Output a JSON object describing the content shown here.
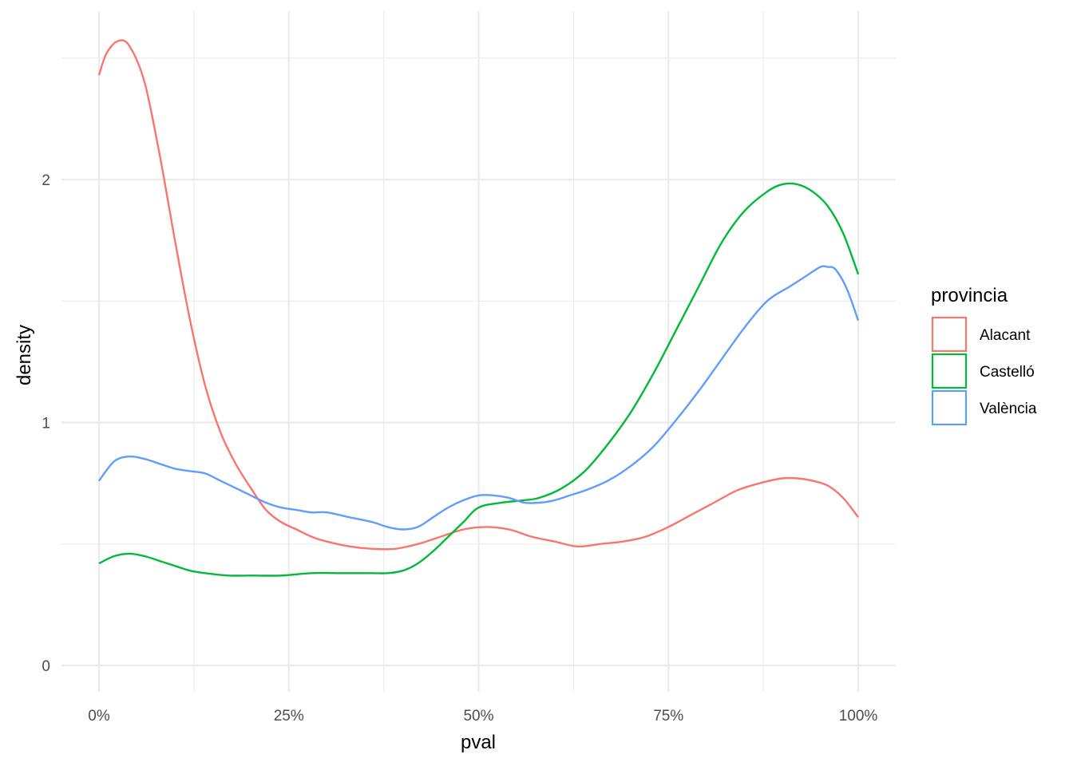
{
  "chart_data": {
    "type": "line",
    "title": "",
    "xlabel": "pval",
    "ylabel": "density",
    "xlim": [
      0,
      100
    ],
    "ylim": [
      0,
      2.5
    ],
    "x_ticks": [
      0,
      25,
      50,
      75,
      100
    ],
    "x_tick_labels": [
      "0%",
      "25%",
      "50%",
      "75%",
      "100%"
    ],
    "y_ticks": [
      0,
      1,
      2
    ],
    "y_tick_labels": [
      "0",
      "1",
      "2"
    ],
    "grid": true,
    "legend": {
      "title": "provincia",
      "position": "right"
    },
    "series": [
      {
        "name": "Alacant",
        "color": "#F8766D",
        "points": [
          [
            0,
            2.43
          ],
          [
            1,
            2.52
          ],
          [
            2.5,
            2.57
          ],
          [
            4,
            2.55
          ],
          [
            6,
            2.4
          ],
          [
            8,
            2.1
          ],
          [
            10,
            1.75
          ],
          [
            12,
            1.42
          ],
          [
            14,
            1.15
          ],
          [
            16,
            0.96
          ],
          [
            18,
            0.83
          ],
          [
            20,
            0.73
          ],
          [
            22,
            0.64
          ],
          [
            24,
            0.59
          ],
          [
            26,
            0.56
          ],
          [
            28,
            0.53
          ],
          [
            30,
            0.51
          ],
          [
            33,
            0.49
          ],
          [
            36,
            0.48
          ],
          [
            39,
            0.48
          ],
          [
            42,
            0.5
          ],
          [
            45,
            0.53
          ],
          [
            48,
            0.56
          ],
          [
            51,
            0.57
          ],
          [
            54,
            0.56
          ],
          [
            57,
            0.53
          ],
          [
            60,
            0.51
          ],
          [
            63,
            0.49
          ],
          [
            66,
            0.5
          ],
          [
            69,
            0.51
          ],
          [
            72,
            0.53
          ],
          [
            75,
            0.57
          ],
          [
            78,
            0.62
          ],
          [
            81,
            0.67
          ],
          [
            84,
            0.72
          ],
          [
            87,
            0.75
          ],
          [
            90,
            0.77
          ],
          [
            92,
            0.77
          ],
          [
            94,
            0.76
          ],
          [
            96,
            0.74
          ],
          [
            98,
            0.69
          ],
          [
            100,
            0.61
          ]
        ]
      },
      {
        "name": "Castelló",
        "color": "#00BA38",
        "points": [
          [
            0,
            0.42
          ],
          [
            2,
            0.45
          ],
          [
            4,
            0.46
          ],
          [
            6,
            0.45
          ],
          [
            8,
            0.43
          ],
          [
            10,
            0.41
          ],
          [
            12,
            0.39
          ],
          [
            14,
            0.38
          ],
          [
            17,
            0.37
          ],
          [
            20,
            0.37
          ],
          [
            24,
            0.37
          ],
          [
            28,
            0.38
          ],
          [
            32,
            0.38
          ],
          [
            36,
            0.38
          ],
          [
            38,
            0.38
          ],
          [
            40,
            0.39
          ],
          [
            42,
            0.42
          ],
          [
            44,
            0.47
          ],
          [
            46,
            0.53
          ],
          [
            48,
            0.59
          ],
          [
            50,
            0.65
          ],
          [
            53,
            0.67
          ],
          [
            56,
            0.68
          ],
          [
            58,
            0.69
          ],
          [
            61,
            0.73
          ],
          [
            64,
            0.8
          ],
          [
            67,
            0.91
          ],
          [
            70,
            1.04
          ],
          [
            73,
            1.2
          ],
          [
            76,
            1.38
          ],
          [
            79,
            1.56
          ],
          [
            82,
            1.74
          ],
          [
            85,
            1.87
          ],
          [
            88,
            1.95
          ],
          [
            90,
            1.98
          ],
          [
            92,
            1.98
          ],
          [
            94,
            1.95
          ],
          [
            96,
            1.89
          ],
          [
            98,
            1.78
          ],
          [
            100,
            1.61
          ]
        ]
      },
      {
        "name": "València",
        "color": "#619CFF",
        "points": [
          [
            0,
            0.76
          ],
          [
            2,
            0.84
          ],
          [
            4,
            0.86
          ],
          [
            6,
            0.85
          ],
          [
            8,
            0.83
          ],
          [
            10,
            0.81
          ],
          [
            12,
            0.8
          ],
          [
            14,
            0.79
          ],
          [
            16,
            0.76
          ],
          [
            18,
            0.73
          ],
          [
            20,
            0.7
          ],
          [
            22,
            0.67
          ],
          [
            24,
            0.65
          ],
          [
            26,
            0.64
          ],
          [
            28,
            0.63
          ],
          [
            30,
            0.63
          ],
          [
            33,
            0.61
          ],
          [
            36,
            0.59
          ],
          [
            38,
            0.57
          ],
          [
            40,
            0.56
          ],
          [
            42,
            0.57
          ],
          [
            44,
            0.61
          ],
          [
            46,
            0.65
          ],
          [
            48,
            0.68
          ],
          [
            50,
            0.7
          ],
          [
            52,
            0.7
          ],
          [
            54,
            0.69
          ],
          [
            56,
            0.67
          ],
          [
            58,
            0.67
          ],
          [
            60,
            0.68
          ],
          [
            62,
            0.7
          ],
          [
            64,
            0.72
          ],
          [
            67,
            0.76
          ],
          [
            70,
            0.82
          ],
          [
            73,
            0.9
          ],
          [
            76,
            1.01
          ],
          [
            79,
            1.13
          ],
          [
            82,
            1.26
          ],
          [
            85,
            1.39
          ],
          [
            88,
            1.5
          ],
          [
            91,
            1.56
          ],
          [
            93,
            1.6
          ],
          [
            95,
            1.64
          ],
          [
            96,
            1.64
          ],
          [
            97,
            1.63
          ],
          [
            98.5,
            1.55
          ],
          [
            100,
            1.42
          ]
        ]
      }
    ]
  }
}
